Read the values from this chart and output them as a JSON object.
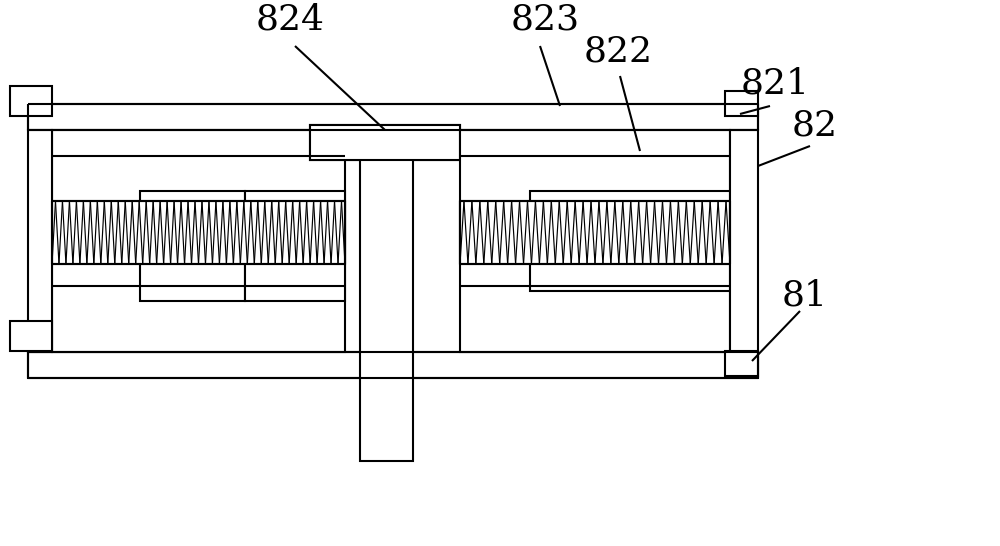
{
  "bg_color": "#ffffff",
  "line_color": "#000000",
  "lw": 1.5,
  "lw_thin": 0.8,
  "fig_width": 10.0,
  "fig_height": 5.46,
  "dpi": 100
}
